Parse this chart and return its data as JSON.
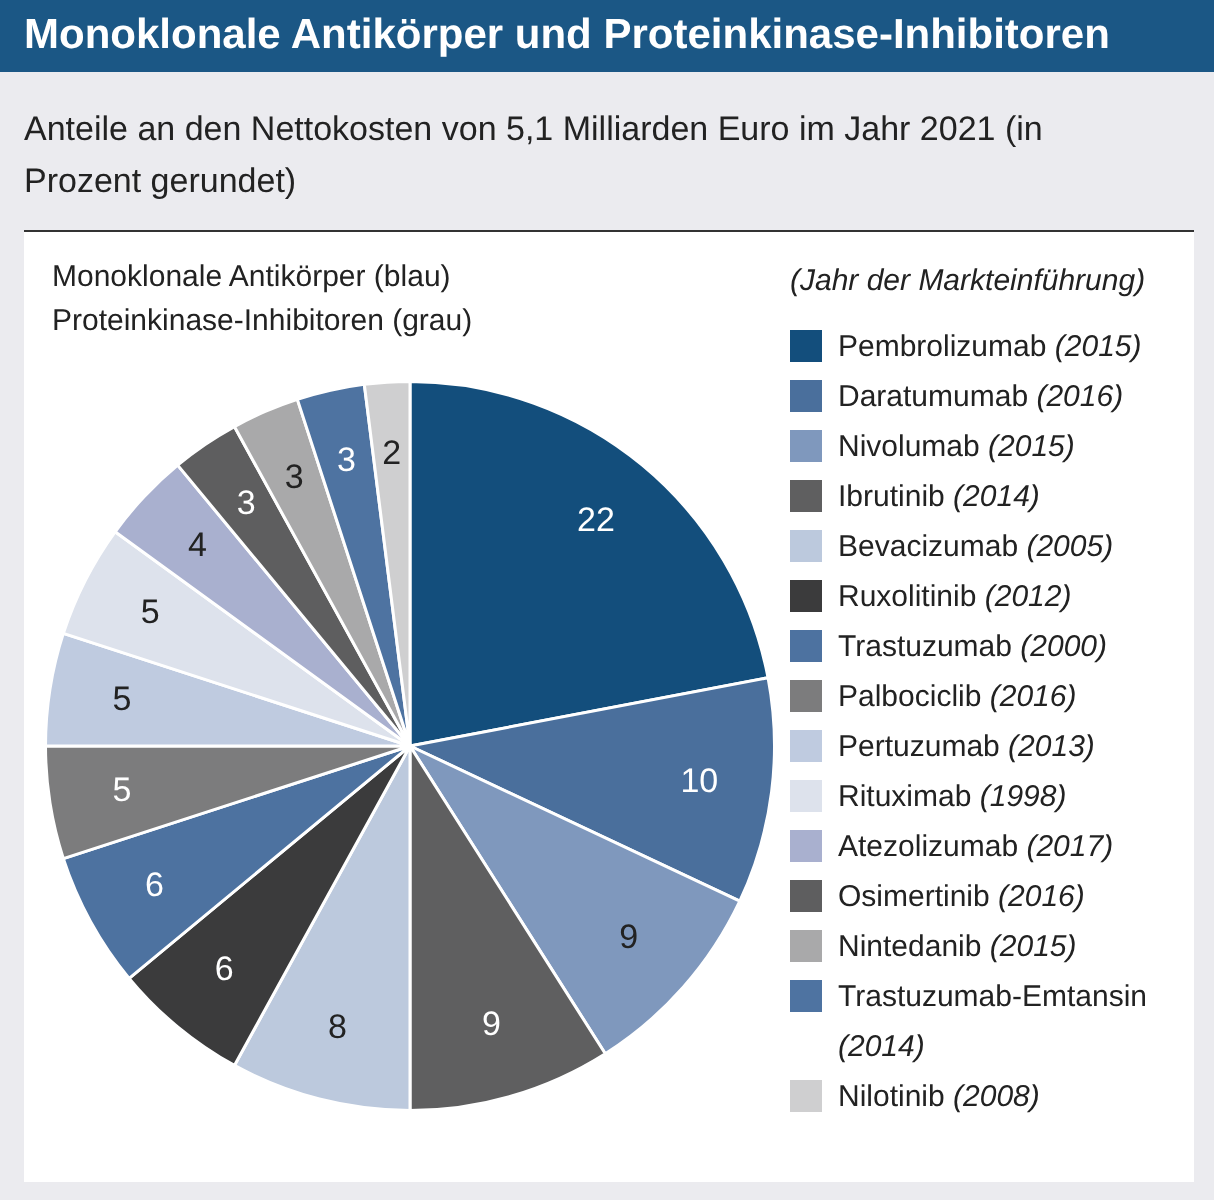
{
  "chart_data": {
    "type": "pie",
    "title": "Monoklonale Antikörper und Proteinkinase-Inhibitoren",
    "subtitle": "Anteile an den Nettokosten von 5,1 Milliarden Euro im Jahr 2021 (in Prozent gerundet)",
    "legend_title": "(Jahr der Markteinführung)",
    "annotations": [
      "Monoklonale Antikörper (blau)",
      "Proteinkinase-Inhibitoren (grau)"
    ],
    "categories": [
      "Pembrolizumab (2015)",
      "Daratumumab (2016)",
      "Nivolumab (2015)",
      "Ibrutinib (2014)",
      "Bevacizumab (2005)",
      "Ruxolitinib (2012)",
      "Trastuzumab (2000)",
      "Palbociclib (2016)",
      "Pertuzumab (2013)",
      "Rituximab (1998)",
      "Atezolizumab (2017)",
      "Osimertinib (2016)",
      "Nintedanib (2015)",
      "Trastuzumab-Emtansin (2014)",
      "Nilotinib (2008)"
    ],
    "values": [
      22,
      10,
      9,
      9,
      8,
      6,
      6,
      5,
      5,
      5,
      4,
      3,
      3,
      3,
      2
    ],
    "colors": [
      "#134e7c",
      "#4a6f9c",
      "#7f98bd",
      "#5f5f60",
      "#bcc9dd",
      "#3b3b3c",
      "#4d72a0",
      "#7c7c7d",
      "#bfcbe0",
      "#dde2ec",
      "#a9b0cf",
      "#5e5e5f",
      "#a9a9aa",
      "#4e73a1",
      "#cfcfd0"
    ],
    "data_labels": true,
    "legend": "right"
  }
}
